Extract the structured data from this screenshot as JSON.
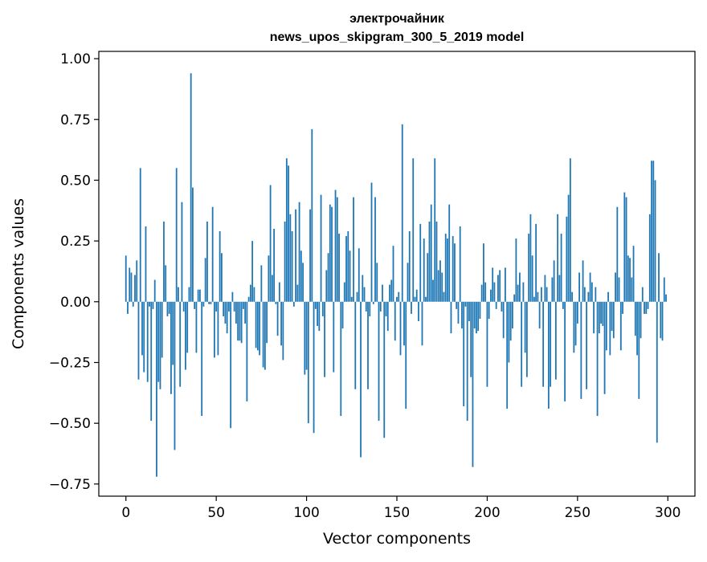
{
  "chart_data": {
    "type": "bar",
    "title": "электрочайник",
    "subtitle": "news_upos_skipgram_300_5_2019 model",
    "xlabel": "Vector components",
    "ylabel": "Components values",
    "xlim": [
      -15,
      315
    ],
    "ylim": [
      -0.8,
      1.03
    ],
    "xticks": [
      0,
      50,
      100,
      150,
      200,
      250,
      300
    ],
    "xtick_labels": [
      "0",
      "50",
      "100",
      "150",
      "200",
      "250",
      "300"
    ],
    "yticks": [
      -0.75,
      -0.5,
      -0.25,
      0.0,
      0.25,
      0.5,
      0.75,
      1.0
    ],
    "ytick_labels": [
      "−0.75",
      "−0.50",
      "−0.25",
      "0.00",
      "0.25",
      "0.50",
      "0.75",
      "1.00"
    ],
    "grid": false,
    "bar_color": "#1f77b4",
    "x": "0..299 (component index)",
    "values": [
      0.19,
      -0.05,
      0.14,
      0.12,
      -0.02,
      0.11,
      0.17,
      -0.32,
      0.55,
      -0.22,
      -0.29,
      0.31,
      -0.33,
      -0.02,
      -0.49,
      -0.03,
      0.09,
      -0.72,
      -0.33,
      -0.36,
      -0.23,
      0.33,
      0.15,
      -0.06,
      -0.05,
      -0.38,
      -0.26,
      -0.61,
      0.55,
      0.06,
      -0.35,
      0.41,
      -0.04,
      -0.28,
      -0.21,
      0.06,
      0.94,
      0.47,
      -0.03,
      -0.21,
      0.05,
      0.05,
      -0.47,
      -0.02,
      0.18,
      0.33,
      -0.01,
      -0.01,
      0.39,
      -0.23,
      -0.04,
      -0.22,
      0.29,
      0.2,
      -0.06,
      -0.09,
      -0.13,
      -0.04,
      -0.52,
      0.04,
      -0.04,
      -0.09,
      -0.16,
      -0.16,
      -0.17,
      -0.03,
      -0.09,
      -0.41,
      0.02,
      0.07,
      0.25,
      0.06,
      -0.19,
      -0.2,
      -0.22,
      0.15,
      -0.27,
      -0.28,
      -0.17,
      0.19,
      0.48,
      0.11,
      0.3,
      -0.01,
      -0.14,
      0.08,
      -0.18,
      -0.24,
      0.33,
      0.59,
      0.56,
      0.36,
      0.29,
      -0.02,
      0.38,
      0.07,
      0.41,
      0.21,
      0.16,
      -0.3,
      -0.28,
      -0.5,
      0.38,
      0.71,
      -0.54,
      -0.03,
      -0.1,
      -0.12,
      0.44,
      -0.06,
      -0.31,
      0.13,
      0.2,
      0.4,
      0.39,
      -0.29,
      0.46,
      0.43,
      0.28,
      -0.47,
      -0.11,
      0.08,
      0.27,
      0.29,
      0.21,
      0.02,
      0.43,
      -0.36,
      0.04,
      0.22,
      -0.64,
      0.11,
      0.06,
      -0.04,
      -0.36,
      -0.06,
      0.49,
      -0.01,
      0.43,
      0.16,
      -0.49,
      -0.04,
      0.07,
      -0.56,
      -0.06,
      -0.12,
      0.07,
      0.09,
      0.23,
      -0.16,
      0.02,
      0.04,
      -0.22,
      0.73,
      -0.18,
      -0.44,
      0.16,
      0.29,
      -0.05,
      0.59,
      0.02,
      0.05,
      -0.08,
      0.32,
      -0.18,
      0.26,
      0.02,
      0.2,
      0.33,
      0.4,
      0.09,
      0.59,
      0.33,
      0.13,
      0.17,
      0.12,
      0.04,
      0.28,
      0.26,
      0.4,
      -0.13,
      0.27,
      0.24,
      -0.03,
      -0.09,
      0.31,
      -0.11,
      -0.43,
      -0.02,
      -0.49,
      -0.08,
      -0.31,
      -0.68,
      -0.11,
      -0.13,
      -0.12,
      -0.07,
      0.07,
      0.24,
      0.08,
      -0.35,
      -0.07,
      0.05,
      0.14,
      0.08,
      -0.03,
      0.11,
      0.13,
      -0.04,
      -0.15,
      0.14,
      -0.44,
      -0.25,
      -0.16,
      -0.11,
      0.03,
      0.26,
      0.07,
      0.12,
      -0.35,
      0.08,
      -0.21,
      -0.31,
      0.28,
      0.36,
      0.19,
      0.02,
      0.32,
      0.04,
      -0.11,
      0.06,
      -0.35,
      0.11,
      0.06,
      -0.44,
      -0.35,
      0.1,
      0.17,
      -0.32,
      0.36,
      0.11,
      0.28,
      -0.03,
      -0.41,
      0.35,
      0.44,
      0.59,
      0.04,
      -0.21,
      -0.18,
      -0.09,
      0.12,
      -0.4,
      0.17,
      0.06,
      -0.36,
      0.04,
      0.12,
      0.08,
      -0.13,
      0.06,
      -0.47,
      -0.13,
      -0.09,
      -0.1,
      -0.38,
      -0.2,
      0.04,
      -0.22,
      -0.12,
      -0.15,
      0.12,
      0.39,
      0.1,
      -0.2,
      -0.05,
      0.45,
      0.43,
      0.19,
      0.18,
      0.1,
      0.23,
      -0.14,
      -0.22,
      -0.4,
      -0.15,
      0.06,
      -0.05,
      -0.05,
      -0.03,
      0.36,
      0.58,
      0.58,
      0.5,
      -0.58,
      0.2,
      -0.15,
      -0.16,
      0.1,
      0.03
    ]
  }
}
